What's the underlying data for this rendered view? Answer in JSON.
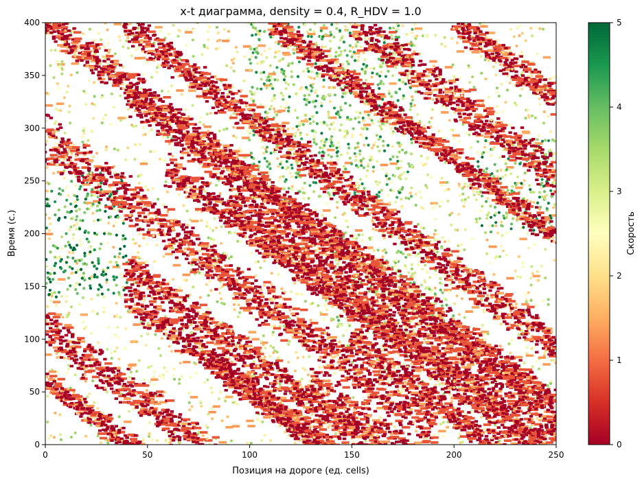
{
  "chart_data": {
    "type": "scatter",
    "title": "x-t диаграмма, density = 0.4, R_HDV = 1.0",
    "xlabel": "Позиция на дороге (ед. cells)",
    "ylabel": "Время (с.)",
    "xlim": [
      0,
      250
    ],
    "ylim": [
      0,
      400
    ],
    "xticks": [
      "0",
      "50",
      "100",
      "150",
      "200",
      "250"
    ],
    "xtick_values": [
      0,
      50,
      100,
      150,
      200,
      250
    ],
    "yticks": [
      "0",
      "50",
      "100",
      "150",
      "200",
      "250",
      "300",
      "350",
      "400"
    ],
    "ytick_values": [
      0,
      50,
      100,
      150,
      200,
      250,
      300,
      350,
      400
    ],
    "colorbar": {
      "label": "Скорость",
      "range": [
        0,
        5
      ],
      "ticks": [
        "0",
        "1",
        "2",
        "3",
        "4",
        "5"
      ],
      "tick_values": [
        0,
        1,
        2,
        3,
        4,
        5
      ],
      "colormap": "RdYlGn",
      "colors": [
        "#a50026",
        "#d73027",
        "#f46d43",
        "#fdae61",
        "#fee08b",
        "#ffffbf",
        "#d9ef8b",
        "#a6d96a",
        "#66bd63",
        "#1a9850",
        "#006837"
      ]
    },
    "jam_bands": [
      {
        "t_start": 400,
        "x_at_start": 0,
        "x_end": 250,
        "width": 12
      },
      {
        "t_start": 400,
        "x_at_start": 38,
        "x_end": 250,
        "width": 14
      },
      {
        "t_start": 400,
        "x_at_start": 110,
        "x_end": 250,
        "width": 10
      },
      {
        "t_start": 400,
        "x_at_start": 150,
        "x_end": 250,
        "width": 16
      },
      {
        "t_start": 400,
        "x_at_start": 200,
        "x_end": 250,
        "width": 12
      },
      {
        "t_start": 290,
        "x_at_start": 0,
        "x_end": 190,
        "width": 18
      },
      {
        "t_start": 330,
        "x_at_start": 40,
        "x_end": 250,
        "width": 14
      },
      {
        "t_start": 260,
        "x_at_start": 60,
        "x_end": 250,
        "width": 12
      },
      {
        "t_start": 230,
        "x_at_start": 90,
        "x_end": 250,
        "width": 14
      },
      {
        "t_start": 170,
        "x_at_start": 40,
        "x_end": 250,
        "width": 12
      },
      {
        "t_start": 110,
        "x_at_start": 0,
        "x_end": 180,
        "width": 16
      },
      {
        "t_start": 140,
        "x_at_start": 40,
        "x_end": 250,
        "width": 12
      },
      {
        "t_start": 80,
        "x_at_start": 80,
        "x_end": 250,
        "width": 12
      },
      {
        "t_start": 60,
        "x_at_start": 130,
        "x_end": 250,
        "width": 14
      },
      {
        "t_start": 100,
        "x_at_start": 150,
        "x_end": 250,
        "width": 12
      },
      {
        "t_start": 60,
        "x_at_start": 0,
        "x_end": 120,
        "width": 10
      }
    ],
    "free_flow_regions": [
      {
        "x_range": [
          0,
          40
        ],
        "t_range": [
          140,
          260
        ],
        "speed": 4.5
      },
      {
        "x_range": [
          100,
          180
        ],
        "t_range": [
          230,
          400
        ],
        "speed": 3.8
      },
      {
        "x_range": [
          210,
          250
        ],
        "t_range": [
          200,
          290
        ],
        "speed": 4.0
      },
      {
        "x_range": [
          140,
          200
        ],
        "t_range": [
          100,
          200
        ],
        "speed": 3.2
      }
    ]
  }
}
